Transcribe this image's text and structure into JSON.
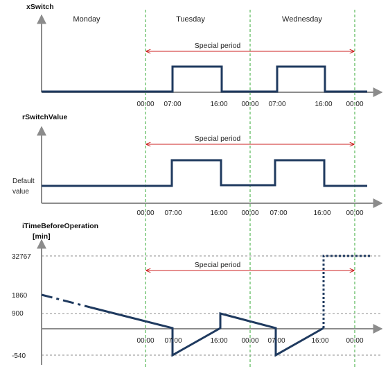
{
  "days": [
    "Monday",
    "Tuesday",
    "Wednesday"
  ],
  "charts": [
    {
      "title": "xSwitch",
      "special_period_label": "Special period",
      "ticks": [
        "00:00",
        "07:00",
        "16:00",
        "00:00",
        "07:00",
        "16:00",
        "00:00"
      ]
    },
    {
      "title": "rSwitchValue",
      "special_period_label": "Special period",
      "y_label_line1": "Default",
      "y_label_line2": "value",
      "ticks": [
        "00:00",
        "07:00",
        "16:00",
        "00:00",
        "07:00",
        "16:00",
        "00:00"
      ]
    },
    {
      "title_line1": "iTimeBeforeOperation",
      "title_line2": "[min]",
      "special_period_label": "Special period",
      "y_ticks": [
        "32767",
        "1860",
        "900",
        "-540"
      ],
      "ticks": [
        "00:00",
        "07:00",
        "16:00",
        "00:00",
        "07:00",
        "16:00",
        "00:00"
      ]
    }
  ],
  "colors": {
    "signal": "#1f3a5f",
    "grid": "#33aa33",
    "period_arrow": "#cc2222",
    "axis": "#8c8c8c"
  }
}
